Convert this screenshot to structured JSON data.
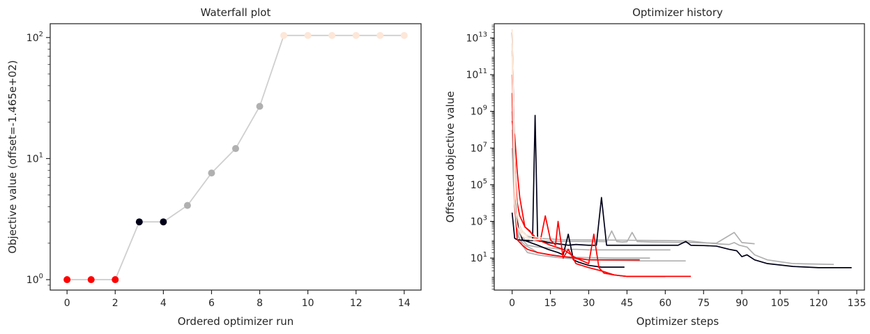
{
  "chart_data": [
    {
      "type": "line",
      "title": "Waterfall plot",
      "xlabel": "Ordered optimizer run",
      "ylabel": "Objective value (offset=-1.465e+02)",
      "yscale": "log",
      "xlim": [
        -0.7,
        14.7
      ],
      "ylim": [
        0.82,
        130
      ],
      "x_ticks": [
        0,
        2,
        4,
        6,
        8,
        10,
        12,
        14
      ],
      "y_ticks": [
        1,
        10,
        100
      ],
      "y_tick_labels": [
        {
          "base": "10",
          "exp": "0"
        },
        {
          "base": "10",
          "exp": "1"
        },
        {
          "base": "10",
          "exp": "2"
        }
      ],
      "grid": false,
      "line_color": "#cfcfcf",
      "x": [
        0,
        1,
        2,
        3,
        4,
        5,
        6,
        7,
        8,
        9,
        10,
        11,
        12,
        13,
        14
      ],
      "values": [
        1.0,
        1.0,
        1.0,
        3.0,
        3.0,
        4.1,
        7.6,
        12.1,
        27.0,
        104,
        104,
        104,
        104,
        104,
        104
      ],
      "point_colors": [
        "#ff0000",
        "#ff0000",
        "#ff0000",
        "#000018",
        "#000018",
        "#b0b0b0",
        "#b0b0b0",
        "#b0b0b0",
        "#b0b0b0",
        "#fde7d8",
        "#fde7d8",
        "#fde7d8",
        "#fde7d8",
        "#fde7d8",
        "#fde7d8"
      ]
    },
    {
      "type": "line",
      "title": "Optimizer history",
      "xlabel": "Optimizer steps",
      "ylabel": "Offsetted objective value",
      "yscale": "log",
      "xlim": [
        -7,
        138
      ],
      "ylim": [
        0.18,
        60000000000000
      ],
      "x_ticks": [
        0,
        15,
        30,
        45,
        60,
        75,
        90,
        105,
        120,
        135
      ],
      "y_ticks": [
        10,
        1000,
        100000,
        10000000,
        1000000000,
        100000000000,
        10000000000000
      ],
      "y_tick_labels": [
        {
          "base": "10",
          "exp": "1"
        },
        {
          "base": "10",
          "exp": "3"
        },
        {
          "base": "10",
          "exp": "5"
        },
        {
          "base": "10",
          "exp": "7"
        },
        {
          "base": "10",
          "exp": "9"
        },
        {
          "base": "10",
          "exp": "11"
        },
        {
          "base": "10",
          "exp": "13"
        }
      ],
      "grid": false,
      "series": [
        {
          "color": "#b0b0b0",
          "x": [
            0,
            1,
            2,
            4,
            6,
            10,
            20,
            40,
            60,
            70,
            75,
            80,
            85,
            87,
            89,
            92,
            95,
            100,
            110,
            126
          ],
          "y": [
            2000000000000,
            1000000,
            1000,
            300,
            150,
            120,
            100,
            95,
            90,
            85,
            70,
            60,
            55,
            70,
            50,
            40,
            15,
            8,
            5,
            4.5
          ]
        },
        {
          "color": "#b0b0b0",
          "x": [
            0,
            1,
            2,
            3,
            5,
            8,
            10,
            20,
            30,
            35,
            37,
            39,
            41,
            43,
            45,
            47,
            49,
            55,
            70,
            80,
            87,
            90,
            95
          ],
          "y": [
            5000000000000,
            10000,
            500,
            200,
            100,
            90,
            85,
            82,
            80,
            80,
            78,
            300,
            80,
            75,
            78,
            250,
            80,
            75,
            70,
            65,
            250,
            70,
            60
          ]
        },
        {
          "color": "#b0b0b0",
          "x": [
            0,
            1,
            2,
            4,
            6,
            10,
            15,
            20,
            25,
            30,
            45,
            62
          ],
          "y": [
            1000000000,
            5000,
            500,
            100,
            50,
            40,
            35,
            30,
            30,
            28,
            28,
            28
          ]
        },
        {
          "color": "#b0b0b0",
          "x": [
            0,
            1,
            2,
            3,
            5,
            8,
            10,
            15,
            20,
            25,
            30,
            40,
            54
          ],
          "y": [
            100000000,
            100000,
            300,
            100,
            50,
            30,
            20,
            15,
            12,
            11,
            10.5,
            10,
            10
          ]
        },
        {
          "color": "#b0b0b0",
          "x": [
            0,
            1,
            2,
            4,
            6,
            10,
            15,
            20,
            25,
            30,
            40,
            50,
            68
          ],
          "y": [
            10000000,
            5000,
            200,
            50,
            20,
            15,
            12,
            10,
            9,
            8,
            7.5,
            7,
            7
          ]
        },
        {
          "color": "#000018",
          "x": [
            0,
            1,
            2,
            5,
            8,
            9,
            10,
            14,
            18,
            22,
            25,
            30,
            33,
            35,
            37,
            40,
            50,
            60,
            65,
            68,
            70,
            75,
            80,
            85,
            88,
            90,
            92,
            95,
            100,
            110,
            120,
            133
          ],
          "y": [
            3000,
            120,
            100,
            90,
            90,
            600000000,
            100,
            70,
            60,
            50,
            55,
            50,
            50,
            20000,
            50,
            50,
            50,
            50,
            50,
            80,
            50,
            48,
            45,
            30,
            25,
            12,
            15,
            8,
            5,
            3.5,
            3,
            3
          ]
        },
        {
          "color": "#000018",
          "x": [
            0,
            1,
            2,
            4,
            6,
            10,
            14,
            18,
            20,
            22,
            24,
            26,
            30,
            35,
            44
          ],
          "y": [
            20000000000000,
            2000000,
            1000,
            100,
            80,
            50,
            30,
            20,
            15,
            200,
            8,
            6,
            4,
            3.2,
            3.2
          ]
        },
        {
          "color": "#ff0000",
          "x": [
            0,
            1,
            2,
            3,
            5,
            7,
            9,
            11,
            13,
            15,
            17,
            18,
            20,
            22,
            25,
            30,
            35,
            40,
            45,
            50,
            60,
            70
          ],
          "y": [
            300000000,
            50000000,
            500000,
            20000,
            500,
            300,
            100,
            80,
            2000,
            100,
            50,
            1000,
            10,
            30,
            5,
            3,
            2,
            1.2,
            1,
            1,
            1,
            1
          ]
        },
        {
          "color": "#ff0000",
          "x": [
            0,
            1,
            2,
            3,
            5,
            8,
            10,
            15,
            20,
            25,
            30,
            32,
            34,
            36,
            40,
            45,
            60
          ],
          "y": [
            100000000000,
            1000000,
            10000,
            2000,
            500,
            200,
            100,
            50,
            30,
            10,
            5,
            200,
            3,
            1.5,
            1.2,
            1,
            1
          ]
        },
        {
          "color": "#ff0000",
          "x": [
            0,
            1,
            2,
            4,
            6,
            10,
            15,
            20,
            25,
            30,
            35,
            40,
            45,
            50
          ],
          "y": [
            10000000000,
            10000,
            100,
            50,
            30,
            20,
            15,
            12,
            10,
            8,
            8,
            8,
            8,
            8
          ]
        },
        {
          "color": "#fde7d8",
          "x": [
            0,
            1,
            2,
            3,
            5,
            8,
            12
          ],
          "y": [
            30000000000000,
            1000000,
            2000,
            500,
            200,
            150,
            120
          ]
        },
        {
          "color": "#fde7d8",
          "x": [
            0,
            1,
            2,
            3,
            5,
            7,
            10,
            14
          ],
          "y": [
            10000000000000,
            100000,
            5000,
            300,
            200,
            100,
            100,
            100
          ]
        },
        {
          "color": "#fde7d8",
          "x": [
            0,
            1,
            2,
            4,
            6,
            8,
            11
          ],
          "y": [
            1000000000000,
            10000,
            500,
            150,
            120,
            110,
            110
          ]
        }
      ]
    }
  ]
}
